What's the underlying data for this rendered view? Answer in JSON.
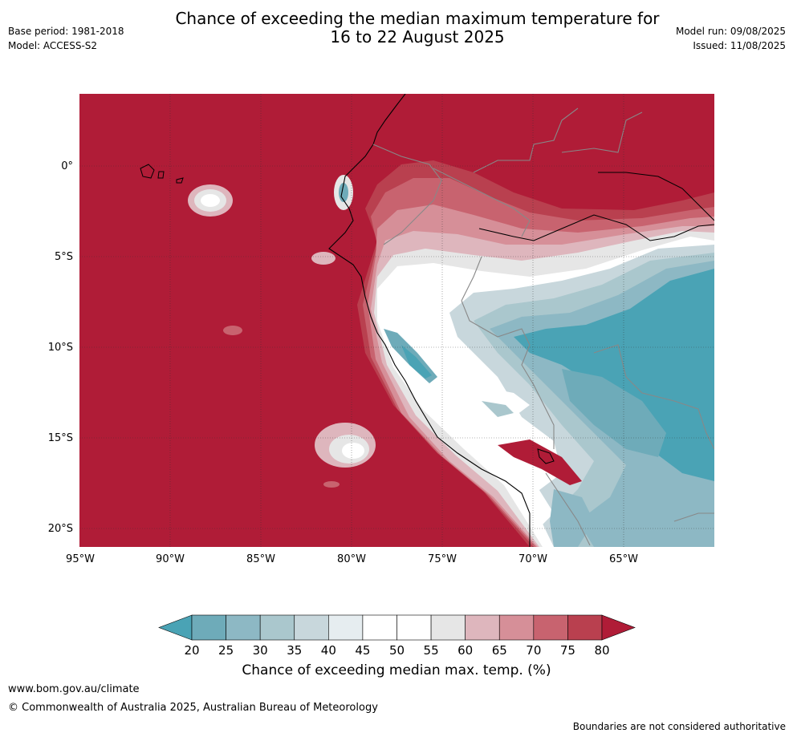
{
  "header": {
    "title_line1": "Chance of exceeding the median maximum temperature for",
    "title_line2": "16 to 22 August 2025",
    "base_period": "Base period: 1981-2018",
    "model": "Model: ACCESS-S2",
    "model_run": "Model run: 09/08/2025",
    "issued": "Issued: 11/08/2025"
  },
  "map": {
    "lon_ticks": [
      "95°W",
      "90°W",
      "85°W",
      "80°W",
      "75°W",
      "70°W",
      "65°W"
    ],
    "lat_ticks": [
      "0°",
      "5°S",
      "10°S",
      "15°S",
      "20°S"
    ],
    "extent_lon": [
      -95,
      -60
    ],
    "extent_lat": [
      -21,
      4
    ],
    "grid": true
  },
  "colorbar": {
    "ticks": [
      "20",
      "25",
      "30",
      "35",
      "40",
      "45",
      "50",
      "55",
      "60",
      "65",
      "70",
      "75",
      "80"
    ],
    "colors": [
      "#4aa3b5",
      "#6eabb9",
      "#8db8c4",
      "#aac7cd",
      "#c8d7dc",
      "#e6edf0",
      "#ffffff",
      "#ffffff",
      "#e6e6e6",
      "#deb6bd",
      "#d68f98",
      "#c8636f",
      "#b9404f",
      "#b01c37"
    ],
    "label": "Chance of exceeding median max. temp. (%)"
  },
  "footer": {
    "url": "www.bom.gov.au/climate",
    "copyright": "© Commonwealth of Australia 2025, Australian Bureau of Meteorology",
    "disclaimer": "Boundaries are not considered authoritative"
  }
}
